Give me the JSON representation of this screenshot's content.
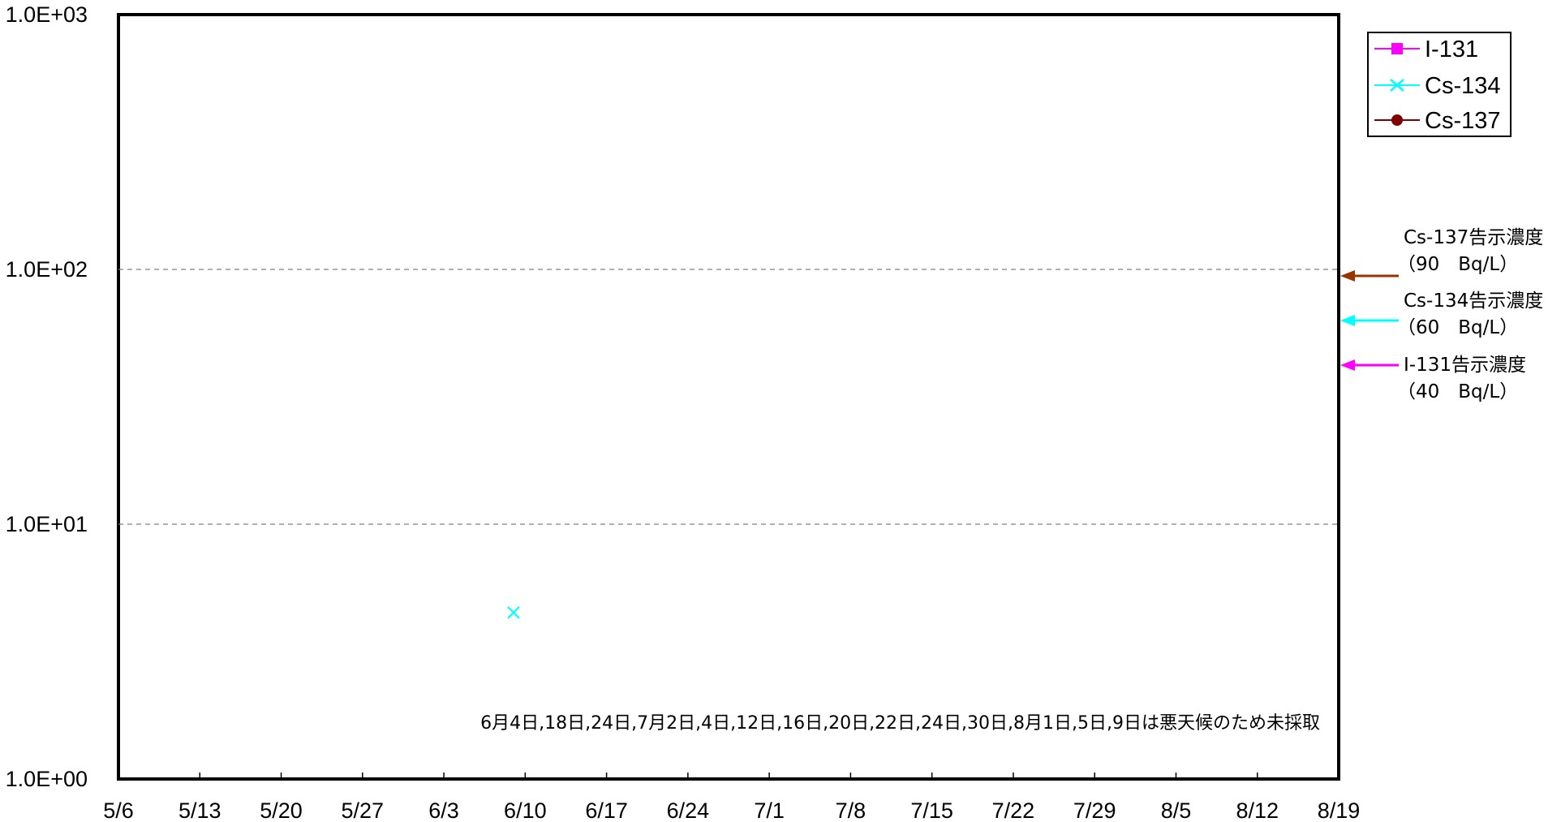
{
  "chart_data": {
    "type": "scatter",
    "x_tick_labels": [
      "5/6",
      "5/13",
      "5/20",
      "5/27",
      "6/3",
      "6/10",
      "6/17",
      "6/24",
      "7/1",
      "7/8",
      "7/15",
      "7/22",
      "7/29",
      "8/5",
      "8/12",
      "8/19"
    ],
    "y_tick_labels": [
      "1.0E+00",
      "1.0E+01",
      "1.0E+02",
      "1.0E+03"
    ],
    "y_scale": "log",
    "ylim": [
      1,
      1000
    ],
    "xlim": [
      "5/6",
      "8/19"
    ],
    "grid": "horizontal dashed at 1.0E+01 and 1.0E+02",
    "legend_position": "top-right",
    "series": [
      {
        "name": "I-131",
        "color": "#ff00ff",
        "marker": "square",
        "points": []
      },
      {
        "name": "Cs-134",
        "color": "#00ffff",
        "marker": "x",
        "points": [
          {
            "x": "6/9",
            "y": 4.5
          }
        ]
      },
      {
        "name": "Cs-137",
        "color": "#800000",
        "marker": "circle",
        "points": []
      }
    ],
    "reference_lines": [
      {
        "label": "Cs-137告示濃度",
        "value_label": "（90　Bq/L）",
        "value": 90,
        "color": "#993300"
      },
      {
        "label": "Cs-134告示濃度",
        "value_label": "（60　Bq/L）",
        "value": 60,
        "color": "#00ffff"
      },
      {
        "label": "I-131告示濃度",
        "value_label": "（40　Bq/L）",
        "value": 40,
        "color": "#ff00ff"
      }
    ],
    "annotation": "6月4日,18日,24日,7月2日,4日,12日,16日,20日,22日,24日,30日,8月1日,5日,9日は悪天候のため未採取"
  }
}
